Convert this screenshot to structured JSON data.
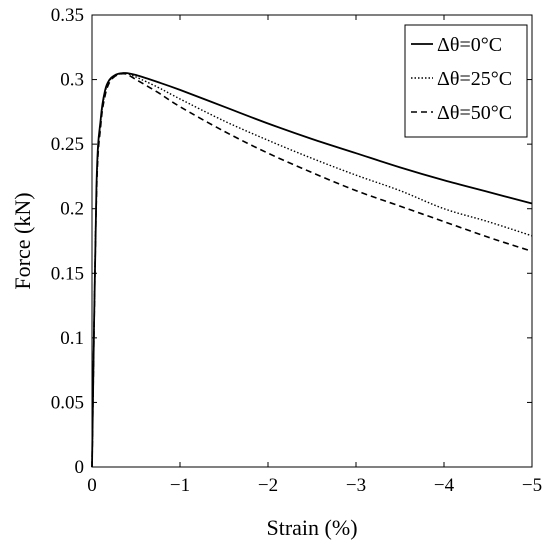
{
  "chart_data": {
    "type": "line",
    "xlabel": "Strain (%)",
    "ylabel": "Force (kN)",
    "xlim": [
      0,
      -5
    ],
    "ylim": [
      0,
      0.35
    ],
    "x_ticks": [
      0,
      -1,
      -2,
      -3,
      -4,
      -5
    ],
    "x_tick_labels": [
      "0",
      "−1",
      "−2",
      "−3",
      "−4",
      "−5"
    ],
    "y_ticks": [
      0,
      0.05,
      0.1,
      0.15,
      0.2,
      0.25,
      0.3,
      0.35
    ],
    "y_tick_labels": [
      "0",
      "0.05",
      "0.1",
      "0.15",
      "0.2",
      "0.25",
      "0.3",
      "0.35"
    ],
    "grid": false,
    "legend_position": "top-right",
    "series": [
      {
        "name": "Δθ=0°C",
        "style": "solid",
        "x": [
          0,
          -0.05,
          -0.1,
          -0.15,
          -0.2,
          -0.25,
          -0.3,
          -0.35,
          -0.4,
          -0.5,
          -0.75,
          -1,
          -1.5,
          -2,
          -2.5,
          -3,
          -3.5,
          -4,
          -4.5,
          -5
        ],
        "y": [
          0,
          0.215,
          0.27,
          0.292,
          0.3,
          0.303,
          0.3045,
          0.305,
          0.305,
          0.3035,
          0.298,
          0.292,
          0.279,
          0.266,
          0.254,
          0.243,
          0.232,
          0.222,
          0.213,
          0.204
        ]
      },
      {
        "name": "Δθ=25°C",
        "style": "dotted",
        "x": [
          0,
          -0.05,
          -0.1,
          -0.15,
          -0.2,
          -0.25,
          -0.3,
          -0.35,
          -0.4,
          -0.5,
          -0.75,
          -1,
          -1.5,
          -2,
          -2.5,
          -3,
          -3.5,
          -4,
          -4.5,
          -5
        ],
        "y": [
          0,
          0.212,
          0.268,
          0.29,
          0.299,
          0.302,
          0.304,
          0.305,
          0.3045,
          0.302,
          0.294,
          0.285,
          0.268,
          0.253,
          0.239,
          0.226,
          0.214,
          0.2,
          0.19,
          0.179
        ]
      },
      {
        "name": "Δθ=50°C",
        "style": "dashed",
        "x": [
          0,
          -0.05,
          -0.1,
          -0.15,
          -0.2,
          -0.25,
          -0.3,
          -0.35,
          -0.4,
          -0.5,
          -0.75,
          -1,
          -1.5,
          -2,
          -2.5,
          -3,
          -3.5,
          -4,
          -4.5,
          -5
        ],
        "y": [
          0,
          0.208,
          0.265,
          0.288,
          0.298,
          0.302,
          0.304,
          0.3045,
          0.304,
          0.3,
          0.29,
          0.279,
          0.26,
          0.243,
          0.228,
          0.214,
          0.202,
          0.19,
          0.178,
          0.167
        ]
      }
    ]
  }
}
